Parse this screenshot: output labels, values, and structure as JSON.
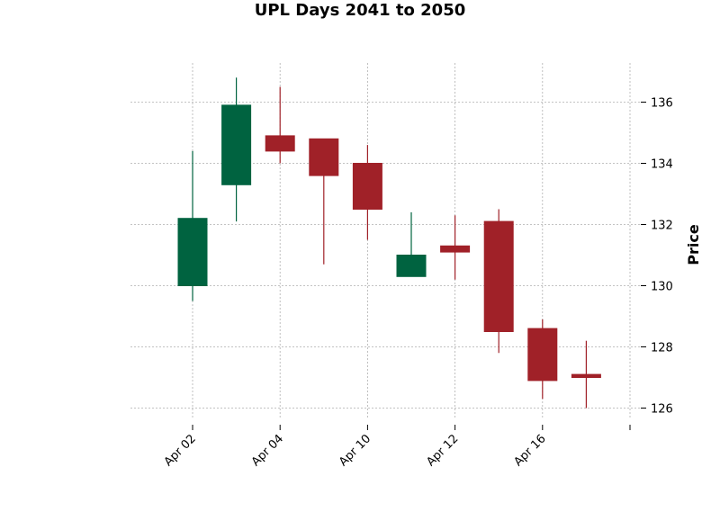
{
  "chart_data": {
    "type": "candlestick",
    "title": "UPL Days 2041 to 2050",
    "xlabel": "",
    "ylabel": "Price",
    "ylim": [
      125.5,
      137.3
    ],
    "yticks": [
      126,
      128,
      130,
      132,
      134,
      136
    ],
    "grid": true,
    "x_tick_labels": [
      "Apr 02",
      "Apr 04",
      "Apr 10",
      "Apr 12",
      "Apr 16",
      ""
    ],
    "candles": [
      {
        "open": 130.0,
        "high": 134.4,
        "low": 129.5,
        "close": 132.2
      },
      {
        "open": 133.3,
        "high": 136.8,
        "low": 132.1,
        "close": 135.9
      },
      {
        "open": 134.9,
        "high": 136.5,
        "low": 134.0,
        "close": 134.4
      },
      {
        "open": 134.8,
        "high": 134.8,
        "low": 130.7,
        "close": 133.6
      },
      {
        "open": 134.0,
        "high": 134.6,
        "low": 131.5,
        "close": 132.5
      },
      {
        "open": 130.3,
        "high": 132.4,
        "low": 130.3,
        "close": 131.0
      },
      {
        "open": 131.3,
        "high": 132.3,
        "low": 130.2,
        "close": 131.1
      },
      {
        "open": 132.1,
        "high": 132.5,
        "low": 127.8,
        "close": 128.5
      },
      {
        "open": 128.6,
        "high": 128.9,
        "low": 126.3,
        "close": 126.9
      },
      {
        "open": 127.1,
        "high": 128.2,
        "low": 126.0,
        "close": 127.0
      }
    ],
    "colors": {
      "up": "#006340",
      "down": "#a02128",
      "grid": "#b0b0b0"
    }
  }
}
